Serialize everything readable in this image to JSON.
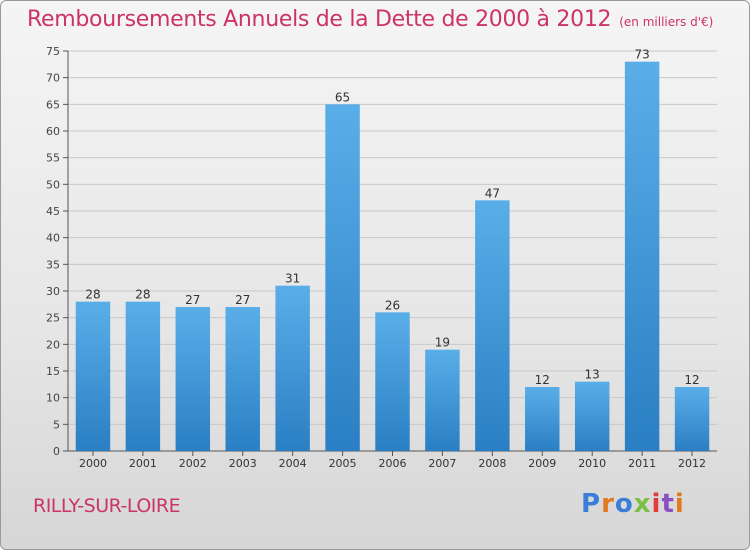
{
  "title": "Remboursements Annuels de la Dette de 2000 à 2012",
  "subtitle": "(en milliers d'€)",
  "commune": "RILLY-SUR-LOIRE",
  "brand": {
    "letters": [
      "P",
      "r",
      "o",
      "x",
      "i",
      "t",
      "i"
    ],
    "colors": [
      "#3b7dd8",
      "#e07a1f",
      "#3b7dd8",
      "#7ac043",
      "#e23b3b",
      "#8a4fc1",
      "#e07a1f"
    ]
  },
  "colors": {
    "bar_top": "#5aaee8",
    "bar_bottom": "#2a7fc4",
    "text": "#cc3366",
    "grid": "#c8c8c8"
  },
  "chart_data": {
    "type": "bar",
    "categories": [
      "2000",
      "2001",
      "2002",
      "2003",
      "2004",
      "2005",
      "2006",
      "2007",
      "2008",
      "2009",
      "2010",
      "2011",
      "2012"
    ],
    "values": [
      28,
      28,
      27,
      27,
      31,
      65,
      26,
      19,
      47,
      12,
      13,
      73,
      12
    ],
    "ylim": [
      0,
      75
    ],
    "yticks": [
      0,
      5,
      10,
      15,
      20,
      25,
      30,
      35,
      40,
      45,
      50,
      55,
      60,
      65,
      70,
      75
    ],
    "grid": true
  }
}
